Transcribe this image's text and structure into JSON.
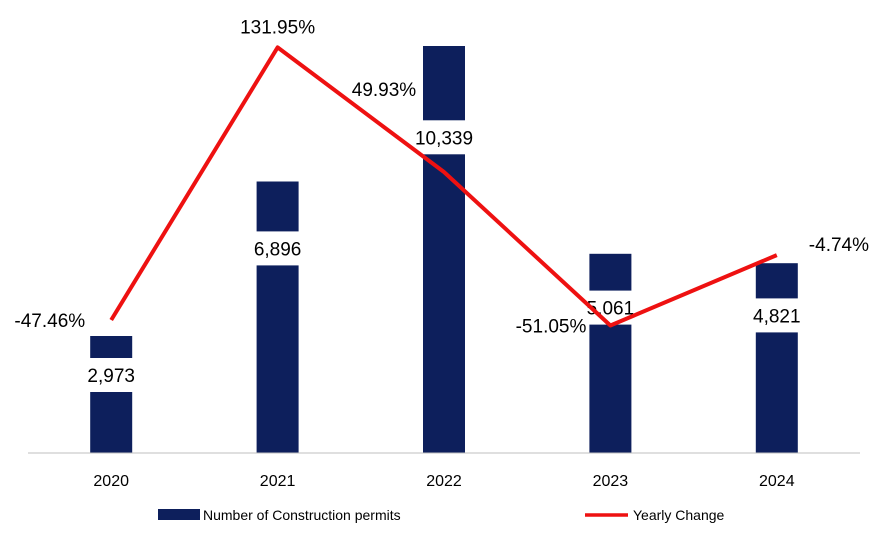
{
  "chart_data": {
    "type": "bar",
    "categories": [
      "2020",
      "2021",
      "2022",
      "2023",
      "2024"
    ],
    "series": [
      {
        "name": "Number of Construction permits",
        "kind": "bar",
        "color": "#0d1f5c",
        "values": [
          2973,
          6896,
          10339,
          5061,
          4821
        ],
        "labels": [
          "2,973",
          "6,896",
          "10,339",
          "5,061",
          "4,821"
        ]
      },
      {
        "name": "Yearly Change",
        "kind": "line",
        "color": "#ee1111",
        "values": [
          -47.46,
          131.95,
          49.93,
          -51.05,
          -4.74
        ],
        "labels": [
          "-47.46%",
          "131.95%",
          "49.93%",
          "-51.05%",
          "-4.74%"
        ]
      }
    ],
    "title": "",
    "xlabel": "",
    "ylabel": "",
    "ylim": [
      0,
      11000
    ],
    "y2lim": [
      -135,
      150
    ],
    "grid": false,
    "legend": "bottom"
  }
}
